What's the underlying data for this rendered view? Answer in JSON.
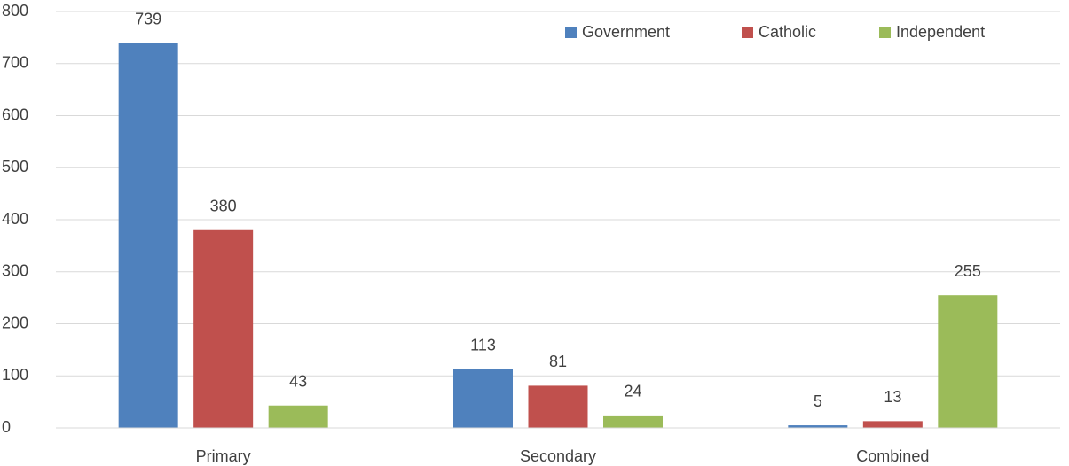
{
  "chart_data": {
    "type": "bar",
    "categories": [
      "Primary",
      "Secondary",
      "Combined"
    ],
    "series": [
      {
        "name": "Government",
        "color": "#4f81bd",
        "values": [
          739,
          113,
          5
        ]
      },
      {
        "name": "Catholic",
        "color": "#c0504d",
        "values": [
          380,
          81,
          13
        ]
      },
      {
        "name": "Independent",
        "color": "#9bbb59",
        "values": [
          43,
          24,
          255
        ]
      }
    ],
    "ylim": [
      0,
      800
    ],
    "yticks": [
      0,
      100,
      200,
      300,
      400,
      500,
      600,
      700,
      800
    ],
    "grid": true,
    "legend": "top-right",
    "data_labels": true
  }
}
